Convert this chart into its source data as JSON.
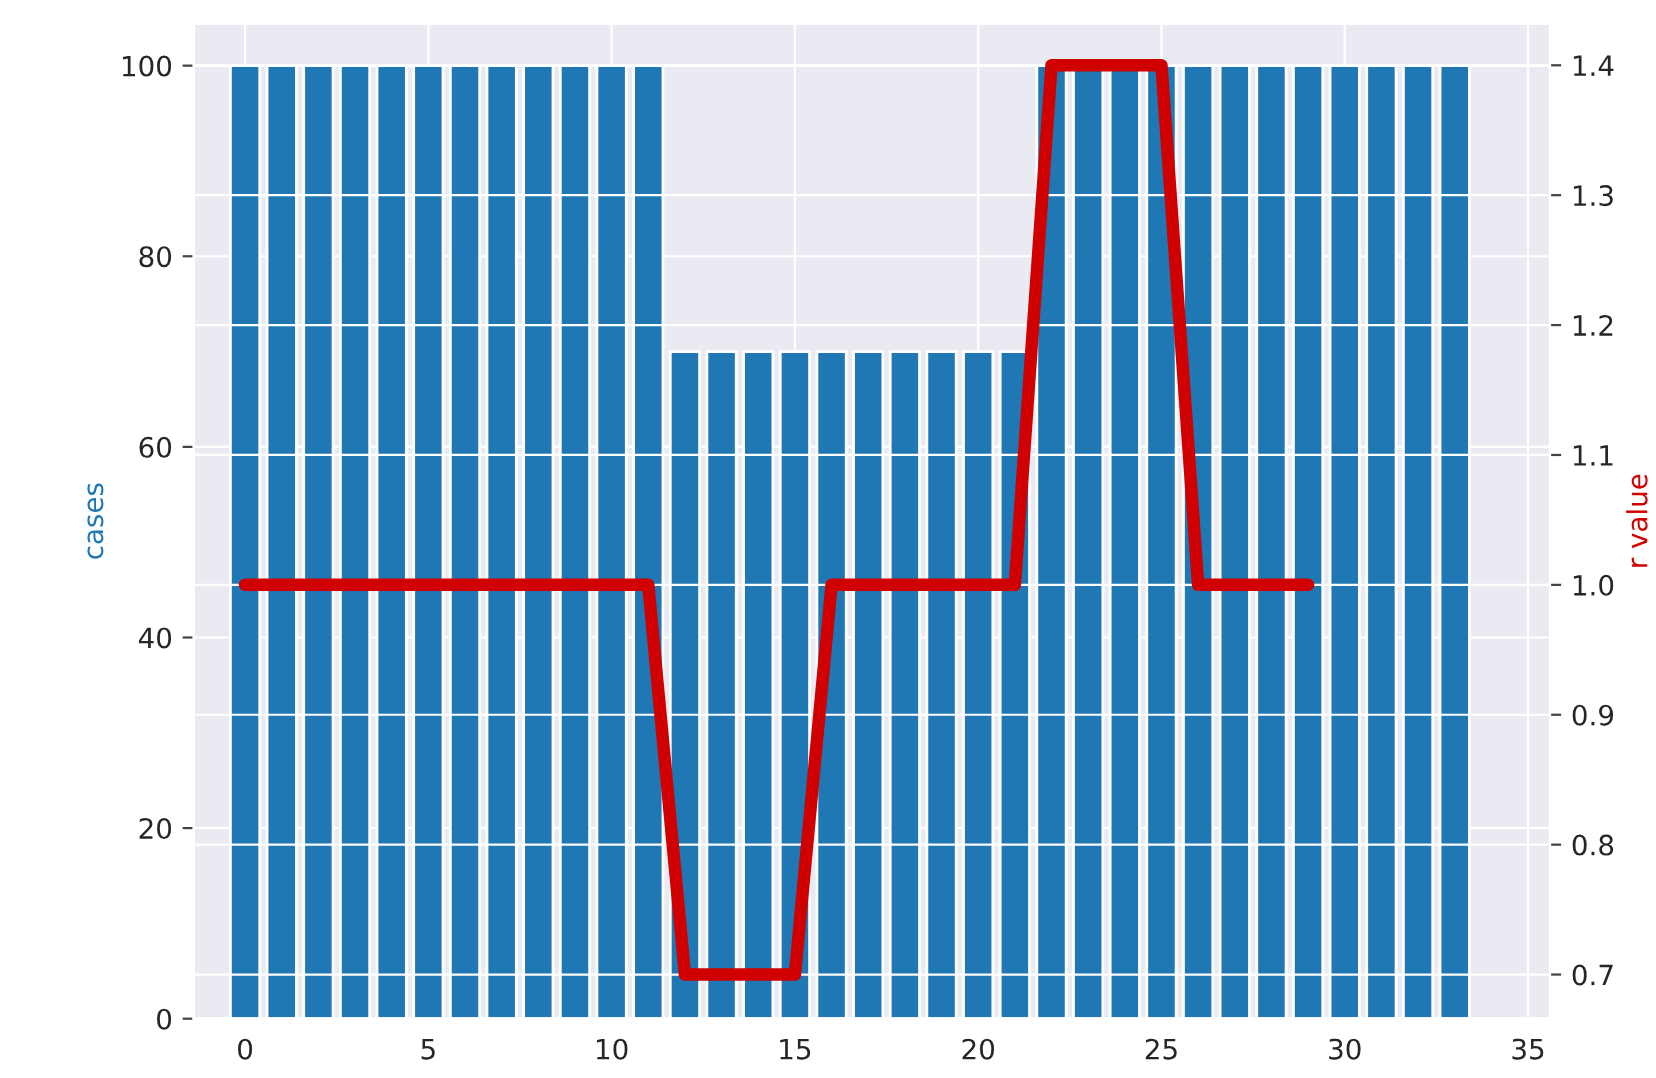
{
  "chart_data": {
    "type": "bar",
    "ylabel": "cases",
    "y2label": "r value",
    "x": [
      0,
      1,
      2,
      3,
      4,
      5,
      6,
      7,
      8,
      9,
      10,
      11,
      12,
      13,
      14,
      15,
      16,
      17,
      18,
      19,
      20,
      21,
      22,
      23,
      24,
      25,
      26,
      27,
      28,
      29,
      30,
      31,
      32,
      33
    ],
    "series": [
      {
        "color": "#1f77b4",
        "values": [
          100,
          100,
          100,
          100,
          100,
          100,
          100,
          100,
          100,
          100,
          100,
          100,
          70,
          70,
          70,
          70,
          70,
          70,
          70,
          70,
          70,
          70,
          100,
          100,
          100,
          100,
          100,
          100,
          100,
          100,
          100,
          100,
          100,
          100
        ]
      },
      {
        "type": "line",
        "axis": "y2",
        "color": "#d00000",
        "x": [
          0,
          1,
          2,
          3,
          4,
          5,
          6,
          7,
          8,
          9,
          10,
          11,
          12,
          13,
          14,
          15,
          16,
          17,
          18,
          19,
          20,
          21,
          22,
          23,
          24,
          25,
          26,
          27,
          28,
          29
        ],
        "values": [
          1.0,
          1.0,
          1.0,
          1.0,
          1.0,
          1.0,
          1.0,
          1.0,
          1.0,
          1.0,
          1.0,
          1.0,
          0.7,
          0.7,
          0.7,
          0.7,
          1.0,
          1.0,
          1.0,
          1.0,
          1.0,
          1.0,
          1.4,
          1.4,
          1.4,
          1.4,
          1.0,
          1.0,
          1.0,
          1.0
        ]
      }
    ],
    "xlim": [
      -1.4,
      35.6
    ],
    "xticks": [
      0,
      5,
      10,
      15,
      20,
      25,
      30,
      35
    ],
    "ylim": [
      0,
      104.4
    ],
    "yticks": [
      0,
      20,
      40,
      60,
      80,
      100
    ],
    "y2lim": [
      0.666,
      1.432
    ],
    "y2ticks": [
      0.7,
      0.8,
      0.9,
      {
        "value": 1.0,
        "label": "1.0"
      },
      1.1,
      1.2,
      1.3,
      1.4
    ],
    "grid": true,
    "line_style": "solid",
    "marker": "none"
  }
}
